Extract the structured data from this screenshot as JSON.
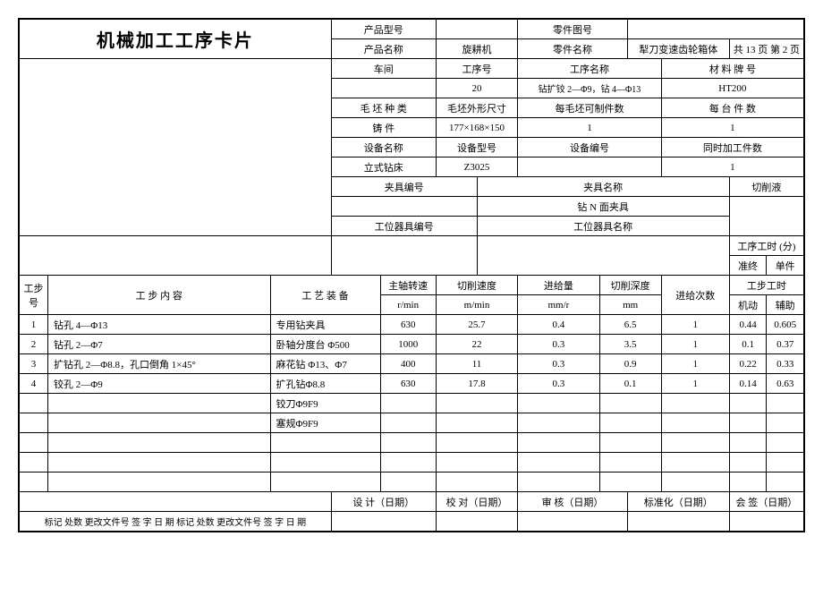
{
  "title": "机械加工工序卡片",
  "header": {
    "prod_model_label": "产品型号",
    "prod_model": "",
    "part_drawing_label": "零件图号",
    "part_drawing": "",
    "prod_name_label": "产品名称",
    "prod_name": "旋耕机",
    "part_name_label": "零件名称",
    "part_name": "犁刀变速齿轮箱体",
    "page_prefix": "共",
    "page_total": "13",
    "page_mid": "页",
    "page_sep": "第",
    "page_num": "2",
    "page_suffix": "页"
  },
  "meta": {
    "workshop_label": "车间",
    "workshop": "",
    "proc_no_label": "工序号",
    "proc_no": "20",
    "proc_name_label": "工序名称",
    "proc_name": "钻扩铰 2—Φ9，钻 4—Φ13",
    "material_label": "材 料 牌 号",
    "material": "HT200",
    "blank_type_label": "毛 坯 种 类",
    "blank_type": "铸  件",
    "blank_dim_label": "毛坯外形尺寸",
    "blank_dim": "177×168×150",
    "per_blank_label": "每毛坯可制件数",
    "per_blank": "1",
    "per_set_label": "每 台 件 数",
    "per_set": "1",
    "equip_name_label": "设备名称",
    "equip_name": "立式钻床",
    "equip_model_label": "设备型号",
    "equip_model": "Z3025",
    "equip_no_label": "设备编号",
    "equip_no": "",
    "concurrent_label": "同时加工件数",
    "concurrent": "1",
    "fixture_no_label": "夹具编号",
    "fixture_no": "",
    "fixture_name_label": "夹具名称",
    "fixture_name": "钻 N 面夹具",
    "coolant_label": "切削液",
    "coolant": "",
    "tool_no_label": "工位器具编号",
    "tool_no": "",
    "tool_name_label": "工位器具名称",
    "tool_name": "",
    "proc_time_label": "工序工时 (分)",
    "prep_label": "准终",
    "unit_label": "单件",
    "prep": "",
    "unit": ""
  },
  "cols": {
    "step_no": "工步号",
    "content": "工    步    内    容",
    "equip": "工  艺  装  备",
    "spindle": "主轴转速",
    "spindle_u": "r/min",
    "speed": "切削速度",
    "speed_u": "m/min",
    "feed": "进给量",
    "feed_u": "mm/r",
    "depth": "切削深度",
    "depth_u": "mm",
    "passes": "进给次数",
    "time": "工步工时",
    "time_m": "机动",
    "time_a": "辅助"
  },
  "rows": [
    {
      "no": "1",
      "content": "钻孔 4—Φ13",
      "equip": "专用钻夹具",
      "spindle": "630",
      "speed": "25.7",
      "feed": "0.4",
      "depth": "6.5",
      "passes": "1",
      "tm": "0.44",
      "ta": "0.605"
    },
    {
      "no": "2",
      "content": "钻孔 2—Φ7",
      "equip": "卧轴分度台  Φ500",
      "spindle": "1000",
      "speed": "22",
      "feed": "0.3",
      "depth": "3.5",
      "passes": "1",
      "tm": "0.1",
      "ta": "0.37"
    },
    {
      "no": "3",
      "content": "扩钻孔 2—Φ8.8，孔口倒角 1×45°",
      "equip": "麻花钻 Φ13、Φ7",
      "spindle": "400",
      "speed": "11",
      "feed": "0.3",
      "depth": "0.9",
      "passes": "1",
      "tm": "0.22",
      "ta": "0.33"
    },
    {
      "no": "4",
      "content": "铰孔 2—Φ9",
      "equip": "扩孔钻Φ8.8",
      "spindle": "630",
      "speed": "17.8",
      "feed": "0.3",
      "depth": "0.1",
      "passes": "1",
      "tm": "0.14",
      "ta": "0.63"
    },
    {
      "no": "",
      "content": "",
      "equip": "铰刀Φ9F9",
      "spindle": "",
      "speed": "",
      "feed": "",
      "depth": "",
      "passes": "",
      "tm": "",
      "ta": ""
    },
    {
      "no": "",
      "content": "",
      "equip": "塞规Φ9F9",
      "spindle": "",
      "speed": "",
      "feed": "",
      "depth": "",
      "passes": "",
      "tm": "",
      "ta": ""
    },
    {
      "no": "",
      "content": "",
      "equip": "",
      "spindle": "",
      "speed": "",
      "feed": "",
      "depth": "",
      "passes": "",
      "tm": "",
      "ta": ""
    },
    {
      "no": "",
      "content": "",
      "equip": "",
      "spindle": "",
      "speed": "",
      "feed": "",
      "depth": "",
      "passes": "",
      "tm": "",
      "ta": ""
    },
    {
      "no": "",
      "content": "",
      "equip": "",
      "spindle": "",
      "speed": "",
      "feed": "",
      "depth": "",
      "passes": "",
      "tm": "",
      "ta": ""
    }
  ],
  "footer": {
    "design": "设 计（日期）",
    "check": "校 对（日期）",
    "audit": "审 核（日期）",
    "std": "标准化（日期）",
    "sign": "会 签（日期）",
    "mark": "标记",
    "qty": "处数",
    "chg_doc": "更改文件号",
    "sig": "签   字",
    "date": "日  期"
  }
}
